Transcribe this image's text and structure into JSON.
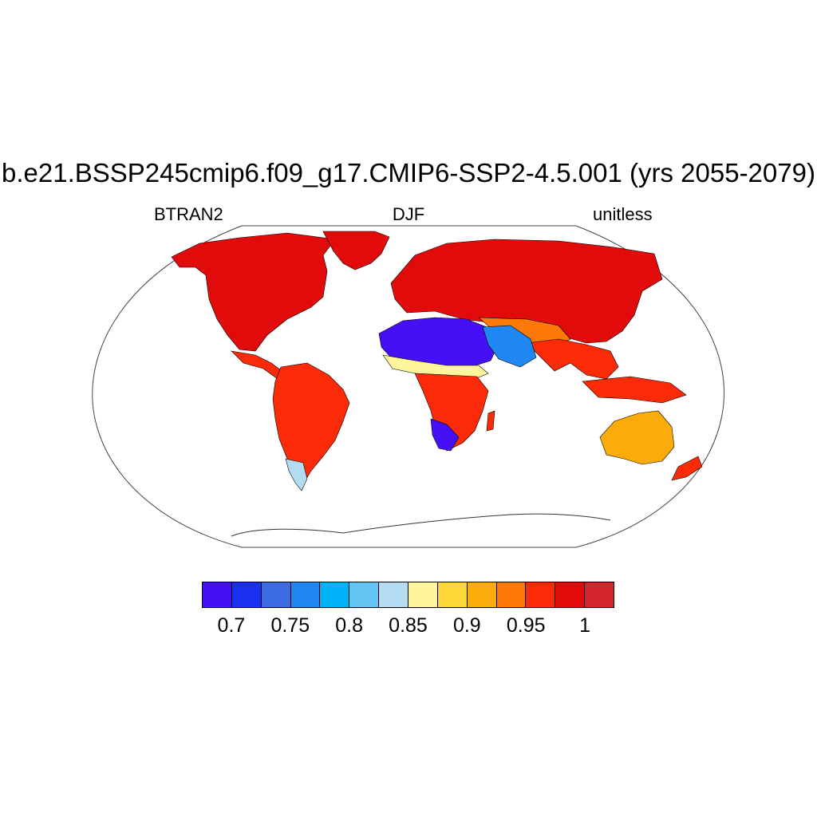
{
  "title": "b.e21.BSSP245cmip6.f09_g17.CMIP6-SSP2-4.5.001 (yrs 2055-2079)",
  "left_label": "BTRAN2",
  "center_label": "DJF",
  "right_label": "unitless",
  "projection": "Robinson",
  "colorbar": {
    "colors": [
      "#4510f5",
      "#1a2ff0",
      "#3d6be3",
      "#2088f2",
      "#00b2f7",
      "#62c4f2",
      "#b3dcf2",
      "#fff59b",
      "#fdd735",
      "#fcac0a",
      "#fc790a",
      "#fb2b07",
      "#e20b0b",
      "#d3252d"
    ],
    "boundaries": [
      0.7,
      0.725,
      0.75,
      0.775,
      0.8,
      0.825,
      0.85,
      0.875,
      0.9,
      0.925,
      0.95,
      0.975,
      1,
      1.025
    ],
    "tick_labels": [
      "0.7",
      "0.75",
      "0.8",
      "0.85",
      "0.9",
      "0.95",
      "1"
    ],
    "tick_values": [
      0.7,
      0.75,
      0.8,
      0.85,
      0.9,
      0.95,
      1
    ]
  },
  "regions": [
    {
      "name": "north-america",
      "value": 1.0
    },
    {
      "name": "greenland",
      "value": 1.0
    },
    {
      "name": "mexico-central-america",
      "value": 0.98
    },
    {
      "name": "south-america",
      "value": 0.98
    },
    {
      "name": "patagonia",
      "value": 0.86
    },
    {
      "name": "europe-russia",
      "value": 1.0
    },
    {
      "name": "central-asia",
      "value": 0.97
    },
    {
      "name": "india-southeast-asia",
      "value": 0.98
    },
    {
      "name": "sahara",
      "value": 0.7
    },
    {
      "name": "sahel",
      "value": 0.88
    },
    {
      "name": "middle-east",
      "value": 0.78
    },
    {
      "name": "central-southern-africa",
      "value": 0.98
    },
    {
      "name": "kalahari",
      "value": 0.72
    },
    {
      "name": "australia",
      "value": 0.93
    },
    {
      "name": "indonesia",
      "value": 0.98
    },
    {
      "name": "new-zealand",
      "value": 0.98
    },
    {
      "name": "madagascar",
      "value": 0.98
    }
  ]
}
